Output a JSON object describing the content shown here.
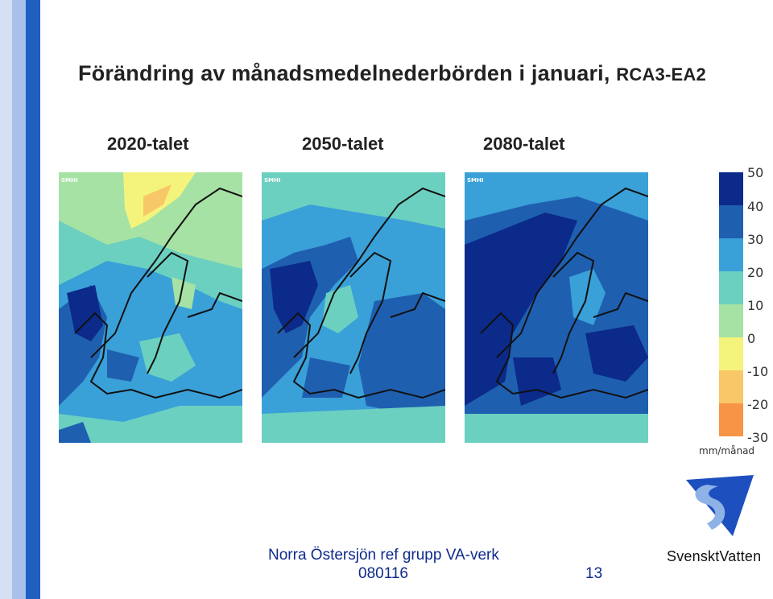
{
  "slide": {
    "title": "Förändring av månadsmedelnederbörden i januari,",
    "model": "RCA3-EA2",
    "periods": [
      "2020-talet",
      "2050-talet",
      "2080-talet"
    ],
    "map_watermark": "SMHI",
    "footer": {
      "text": "Norra Östersjön ref grupp VA-verk",
      "date": "080116",
      "page_number": "13"
    },
    "logo_text": "SvensktVatten"
  },
  "legend": {
    "unit": "mm/månad",
    "labels": [
      "50",
      "40",
      "30",
      "20",
      "10",
      "0",
      "-10",
      "-20",
      "-30"
    ],
    "colors": [
      "#0b2a8a",
      "#1f5fb0",
      "#3aa0d8",
      "#6cd0c0",
      "#a6e2a4",
      "#f4f47c",
      "#f7c768",
      "#f89446"
    ]
  },
  "colors": {
    "stripe_dark": "#1f5fbf",
    "stripe_light": "#a9c0ea",
    "footer_text": "#0e2a8c",
    "logo_blue": "#1e4fbf",
    "logo_light": "#8fb2e6"
  }
}
